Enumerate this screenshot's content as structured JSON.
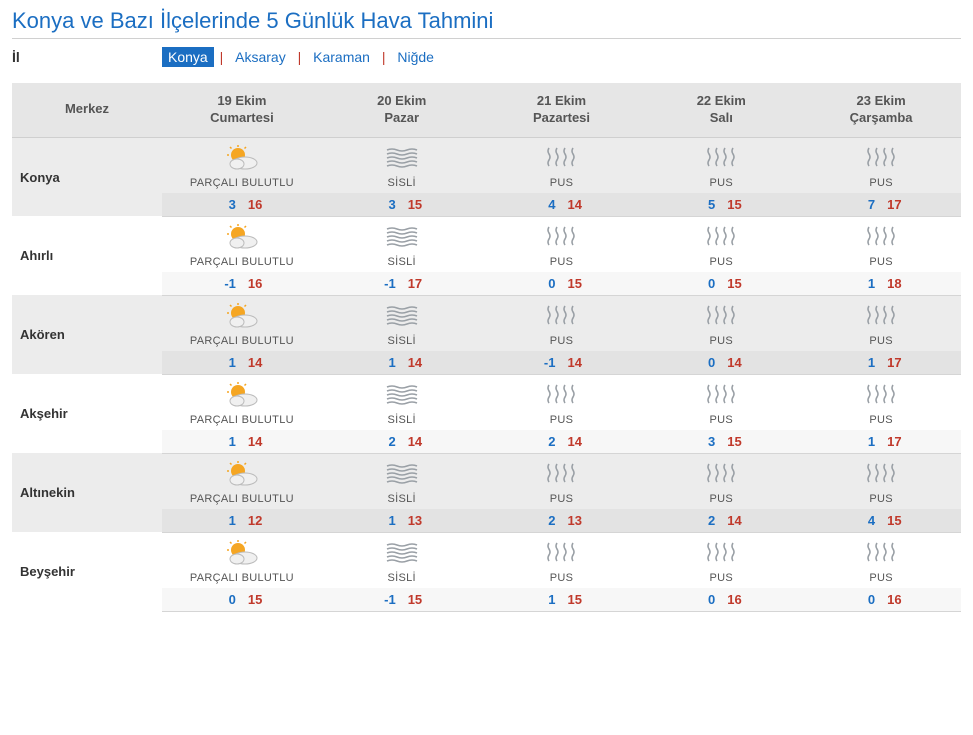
{
  "title": "Konya ve Bazı İlçelerinde 5 Günlük Hava Tahmini",
  "provinceLabel": "İl",
  "provinces": [
    {
      "name": "Konya",
      "active": true
    },
    {
      "name": "Aksaray",
      "active": false
    },
    {
      "name": "Karaman",
      "active": false
    },
    {
      "name": "Niğde",
      "active": false
    }
  ],
  "colors": {
    "link": "#1b6ec2",
    "sep": "#c0392b",
    "min": "#1b6ec2",
    "max": "#c0392b",
    "headerBg": "#e6e6e6",
    "altBg": "#ececec"
  },
  "columns": {
    "location": "Merkez",
    "days": [
      {
        "date": "19 Ekim",
        "dow": "Cumartesi"
      },
      {
        "date": "20 Ekim",
        "dow": "Pazar"
      },
      {
        "date": "21 Ekim",
        "dow": "Pazartesi"
      },
      {
        "date": "22 Ekim",
        "dow": "Salı"
      },
      {
        "date": "23 Ekim",
        "dow": "Çarşamba"
      }
    ]
  },
  "conditionLabels": {
    "partly": "PARÇALI BULUTLU",
    "fog": "SİSLİ",
    "haze": "PUS"
  },
  "locations": [
    {
      "name": "Konya",
      "forecast": [
        {
          "cond": "partly",
          "min": 3,
          "max": 16
        },
        {
          "cond": "fog",
          "min": 3,
          "max": 15
        },
        {
          "cond": "haze",
          "min": 4,
          "max": 14
        },
        {
          "cond": "haze",
          "min": 5,
          "max": 15
        },
        {
          "cond": "haze",
          "min": 7,
          "max": 17
        }
      ]
    },
    {
      "name": "Ahırlı",
      "forecast": [
        {
          "cond": "partly",
          "min": -1,
          "max": 16
        },
        {
          "cond": "fog",
          "min": -1,
          "max": 17
        },
        {
          "cond": "haze",
          "min": 0,
          "max": 15
        },
        {
          "cond": "haze",
          "min": 0,
          "max": 15
        },
        {
          "cond": "haze",
          "min": 1,
          "max": 18
        }
      ]
    },
    {
      "name": "Akören",
      "forecast": [
        {
          "cond": "partly",
          "min": 1,
          "max": 14
        },
        {
          "cond": "fog",
          "min": 1,
          "max": 14
        },
        {
          "cond": "haze",
          "min": -1,
          "max": 14
        },
        {
          "cond": "haze",
          "min": 0,
          "max": 14
        },
        {
          "cond": "haze",
          "min": 1,
          "max": 17
        }
      ]
    },
    {
      "name": "Akşehir",
      "forecast": [
        {
          "cond": "partly",
          "min": 1,
          "max": 14
        },
        {
          "cond": "fog",
          "min": 2,
          "max": 14
        },
        {
          "cond": "haze",
          "min": 2,
          "max": 14
        },
        {
          "cond": "haze",
          "min": 3,
          "max": 15
        },
        {
          "cond": "haze",
          "min": 1,
          "max": 17
        }
      ]
    },
    {
      "name": "Altınekin",
      "forecast": [
        {
          "cond": "partly",
          "min": 1,
          "max": 12
        },
        {
          "cond": "fog",
          "min": 1,
          "max": 13
        },
        {
          "cond": "haze",
          "min": 2,
          "max": 13
        },
        {
          "cond": "haze",
          "min": 2,
          "max": 14
        },
        {
          "cond": "haze",
          "min": 4,
          "max": 15
        }
      ]
    },
    {
      "name": "Beyşehir",
      "forecast": [
        {
          "cond": "partly",
          "min": 0,
          "max": 15
        },
        {
          "cond": "fog",
          "min": -1,
          "max": 15
        },
        {
          "cond": "haze",
          "min": 1,
          "max": 15
        },
        {
          "cond": "haze",
          "min": 0,
          "max": 16
        },
        {
          "cond": "haze",
          "min": 0,
          "max": 16
        }
      ]
    }
  ]
}
